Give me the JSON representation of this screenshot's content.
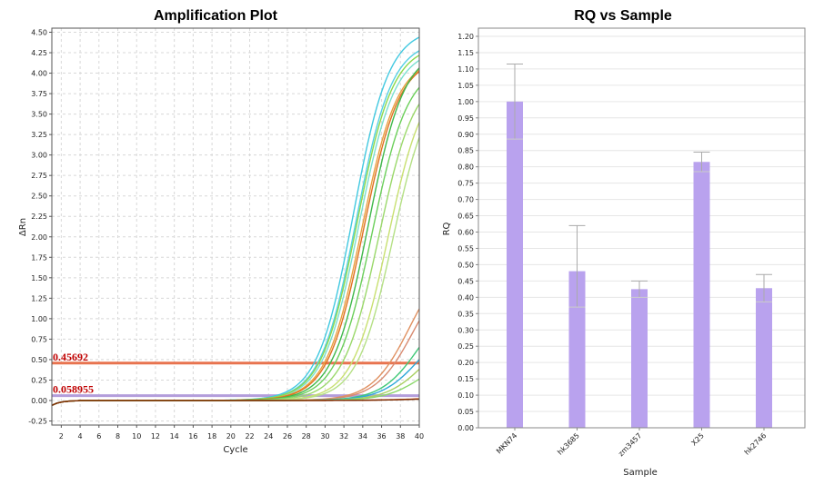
{
  "chart_data": [
    {
      "type": "line",
      "title": "Amplification Plot",
      "xlabel": "Cycle",
      "ylabel": "ΔRn",
      "xlim": [
        1,
        40
      ],
      "ylim": [
        -0.3,
        4.55
      ],
      "x_ticks": [
        2,
        4,
        6,
        8,
        10,
        12,
        14,
        16,
        18,
        20,
        22,
        24,
        26,
        28,
        30,
        32,
        34,
        36,
        38,
        40
      ],
      "y_ticks": [
        "4.50",
        "4.25",
        "4.00",
        "3.75",
        "3.50",
        "3.25",
        "3.00",
        "2.75",
        "2.50",
        "2.25",
        "2.00",
        "1.75",
        "1.50",
        "1.25",
        "1.00",
        "0.75",
        "0.50",
        "0.25",
        "0.00",
        "-0.25"
      ],
      "grid": true,
      "thresholds": [
        {
          "label": "0.45692",
          "value": 0.45692,
          "color": "#e8734f"
        },
        {
          "label": "0.058955",
          "value": 0.058955,
          "color": "#b39ddb"
        }
      ],
      "series": [
        {
          "color": "#40c8e0",
          "plateau": 4.55,
          "midpoint": 33.0,
          "slope": 1.9
        },
        {
          "color": "#55d0e4",
          "plateau": 4.4,
          "midpoint": 33.3,
          "slope": 1.9
        },
        {
          "color": "#7adfd0",
          "plateau": 4.3,
          "midpoint": 33.6,
          "slope": 1.9
        },
        {
          "color": "#8cd94a",
          "plateau": 4.35,
          "midpoint": 33.4,
          "slope": 1.9
        },
        {
          "color": "#e8a040",
          "plateau": 4.2,
          "midpoint": 33.9,
          "slope": 1.9
        },
        {
          "color": "#e07020",
          "plateau": 4.2,
          "midpoint": 34.1,
          "slope": 1.9
        },
        {
          "color": "#3fb84a",
          "plateau": 4.3,
          "midpoint": 34.6,
          "slope": 1.9
        },
        {
          "color": "#6bcf5a",
          "plateau": 4.1,
          "midpoint": 35.0,
          "slope": 1.9
        },
        {
          "color": "#9ad86a",
          "plateau": 4.0,
          "midpoint": 35.7,
          "slope": 1.9
        },
        {
          "color": "#c8e070",
          "plateau": 4.0,
          "midpoint": 36.7,
          "slope": 1.9
        },
        {
          "color": "#b5e085",
          "plateau": 3.95,
          "midpoint": 37.2,
          "slope": 1.9
        },
        {
          "color": "#e09060",
          "plateau": 1.8,
          "midpoint": 39.0,
          "slope": 2.0
        },
        {
          "color": "#d88a70",
          "plateau": 1.7,
          "midpoint": 39.4,
          "slope": 2.0
        },
        {
          "color": "#40c878",
          "plateau": 1.3,
          "midpoint": 40.0,
          "slope": 2.0
        },
        {
          "color": "#2fa8d8",
          "plateau": 1.0,
          "midpoint": 40.0,
          "slope": 2.0
        },
        {
          "color": "#a8d060",
          "plateau": 0.9,
          "midpoint": 40.6,
          "slope": 2.0
        },
        {
          "color": "#8bd86a",
          "plateau": 0.6,
          "midpoint": 40.5,
          "slope": 2.0
        },
        {
          "color": "#cc3300",
          "plateau": 0.06,
          "midpoint": 42.0,
          "slope": 3.0
        },
        {
          "color": "#7a2a00",
          "plateau": 0.05,
          "midpoint": 42.0,
          "slope": 3.0
        }
      ]
    },
    {
      "type": "bar",
      "title": "RQ vs Sample",
      "xlabel": "Sample",
      "ylabel": "RQ",
      "ylim": [
        0,
        1.2
      ],
      "y_ticks": [
        "0.00",
        "0.05",
        "0.10",
        "0.15",
        "0.20",
        "0.25",
        "0.30",
        "0.35",
        "0.40",
        "0.45",
        "0.50",
        "0.55",
        "0.60",
        "0.65",
        "0.70",
        "0.75",
        "0.80",
        "0.85",
        "0.90",
        "0.95",
        "1.00",
        "1.05",
        "1.10",
        "1.15",
        "1.20"
      ],
      "categories": [
        "MKN74",
        "hk3685",
        "zm3457",
        "X25",
        "hk2746"
      ],
      "values": [
        1.0,
        0.48,
        0.425,
        0.815,
        0.428
      ],
      "error_high": [
        1.115,
        0.62,
        0.45,
        0.845,
        0.47
      ],
      "error_low": [
        0.885,
        0.37,
        0.4,
        0.785,
        0.386
      ],
      "bar_color": "#b9a2ee",
      "grid": true
    }
  ]
}
